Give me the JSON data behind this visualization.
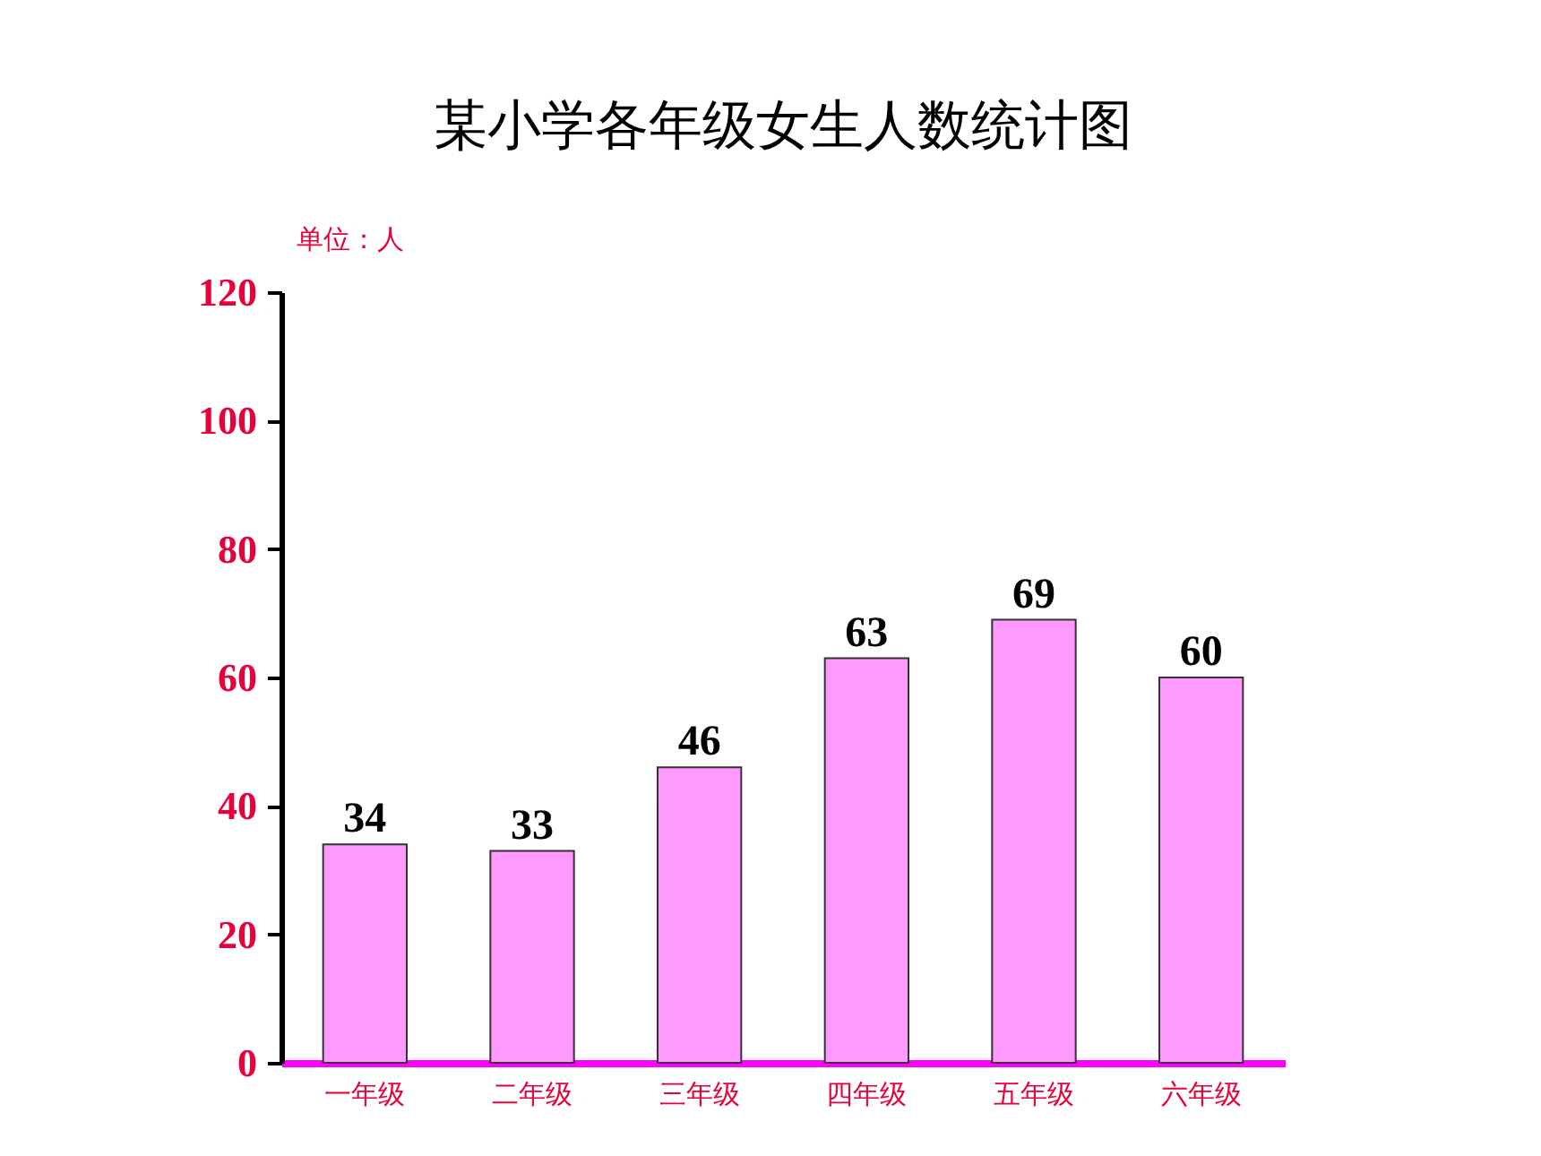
{
  "chart_data": {
    "type": "bar",
    "title": "某小学各年级女生人数统计图",
    "ylabel": "单位：人",
    "categories": [
      "一年级",
      "二年级",
      "三年级",
      "四年级",
      "五年级",
      "六年级"
    ],
    "values": [
      34,
      33,
      46,
      63,
      69,
      60
    ],
    "color": "#ff99ff",
    "ylim": [
      0,
      120
    ],
    "yticks": [
      0,
      20,
      40,
      60,
      80,
      100,
      120
    ],
    "grid": false,
    "data_labels": true
  }
}
